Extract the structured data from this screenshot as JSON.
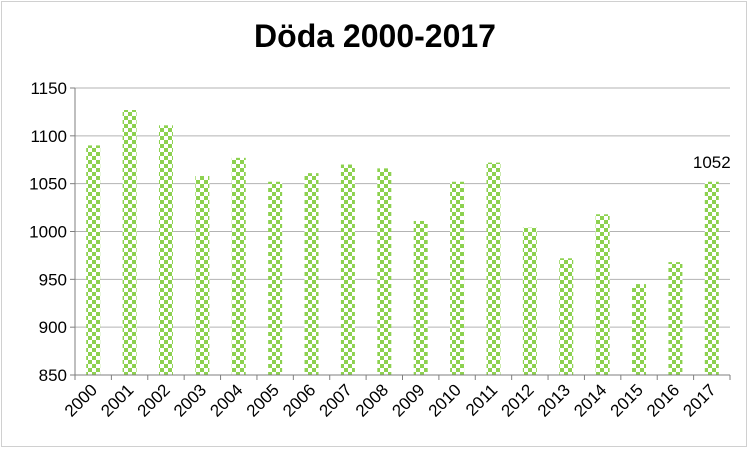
{
  "chart_data": {
    "type": "bar",
    "title": "Döda 2000-2017",
    "xlabel": "",
    "ylabel": "",
    "ylim": [
      850,
      1150
    ],
    "yticks": [
      850,
      900,
      950,
      1000,
      1050,
      1100,
      1150
    ],
    "grid": true,
    "legend": "none",
    "bar_color": "#8dd14f",
    "categories": [
      "2000",
      "2001",
      "2002",
      "2003",
      "2004",
      "2005",
      "2006",
      "2007",
      "2008",
      "2009",
      "2010",
      "2011",
      "2012",
      "2013",
      "2014",
      "2015",
      "2016",
      "2017"
    ],
    "values": [
      1090,
      1127,
      1111,
      1058,
      1077,
      1052,
      1061,
      1070,
      1066,
      1011,
      1052,
      1072,
      1004,
      972,
      1018,
      945,
      968,
      1052
    ],
    "data_labels": [
      {
        "category": "2017",
        "text": "1052"
      }
    ]
  }
}
